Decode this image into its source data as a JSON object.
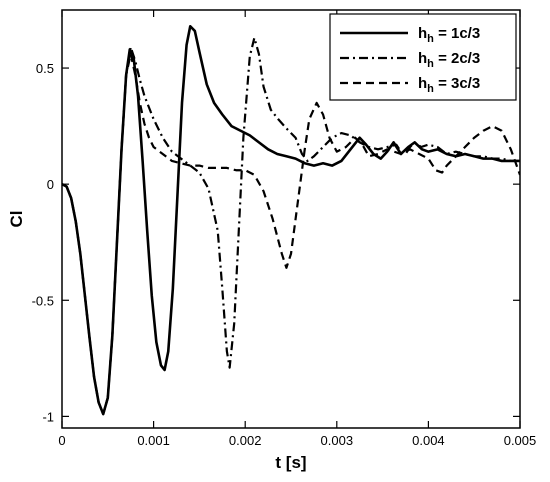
{
  "chart_data": {
    "type": "line",
    "xlabel": "t [s]",
    "ylabel": "Cl",
    "xlim": [
      0,
      0.005
    ],
    "ylim": [
      -1.05,
      0.75
    ],
    "grid": false,
    "legend_position": "top-right",
    "x_ticks": [
      0,
      0.001,
      0.002,
      0.003,
      0.004,
      0.005
    ],
    "x_tick_labels": [
      "0",
      "0.001",
      "0.002",
      "0.003",
      "0.004",
      "0.005"
    ],
    "y_ticks": [
      -1,
      -0.5,
      0,
      0.5
    ],
    "y_tick_labels": [
      "-1",
      "-0.5",
      "0",
      "0.5"
    ],
    "series": [
      {
        "name": "h_h = 1c/3",
        "legend_main": "h",
        "legend_sub": "h",
        "legend_rest": " = 1c/3",
        "style": "solid",
        "color": "#000000",
        "points": [
          [
            0,
            0
          ],
          [
            5e-05,
            -0.01
          ],
          [
            0.0001,
            -0.06
          ],
          [
            0.00015,
            -0.16
          ],
          [
            0.0002,
            -0.3
          ],
          [
            0.00025,
            -0.48
          ],
          [
            0.0003,
            -0.66
          ],
          [
            0.00035,
            -0.83
          ],
          [
            0.0004,
            -0.94
          ],
          [
            0.00045,
            -0.99
          ],
          [
            0.0005,
            -0.92
          ],
          [
            0.00055,
            -0.65
          ],
          [
            0.0006,
            -0.25
          ],
          [
            0.00065,
            0.15
          ],
          [
            0.0007,
            0.47
          ],
          [
            0.00074,
            0.58
          ],
          [
            0.00078,
            0.55
          ],
          [
            0.00083,
            0.38
          ],
          [
            0.00088,
            0.1
          ],
          [
            0.00093,
            -0.2
          ],
          [
            0.00098,
            -0.48
          ],
          [
            0.00103,
            -0.68
          ],
          [
            0.00108,
            -0.78
          ],
          [
            0.00112,
            -0.8
          ],
          [
            0.00116,
            -0.72
          ],
          [
            0.00121,
            -0.45
          ],
          [
            0.00126,
            -0.05
          ],
          [
            0.00131,
            0.35
          ],
          [
            0.00136,
            0.6
          ],
          [
            0.0014,
            0.68
          ],
          [
            0.00145,
            0.66
          ],
          [
            0.0015,
            0.57
          ],
          [
            0.00158,
            0.43
          ],
          [
            0.00166,
            0.35
          ],
          [
            0.00175,
            0.3
          ],
          [
            0.00185,
            0.25
          ],
          [
            0.00195,
            0.23
          ],
          [
            0.00205,
            0.21
          ],
          [
            0.00215,
            0.18
          ],
          [
            0.00225,
            0.15
          ],
          [
            0.00235,
            0.13
          ],
          [
            0.00245,
            0.12
          ],
          [
            0.00255,
            0.11
          ],
          [
            0.00265,
            0.09
          ],
          [
            0.00275,
            0.08
          ],
          [
            0.00285,
            0.09
          ],
          [
            0.00295,
            0.08
          ],
          [
            0.00305,
            0.1
          ],
          [
            0.00315,
            0.15
          ],
          [
            0.00325,
            0.2
          ],
          [
            0.00332,
            0.17
          ],
          [
            0.0034,
            0.13
          ],
          [
            0.00348,
            0.11
          ],
          [
            0.00355,
            0.14
          ],
          [
            0.00362,
            0.18
          ],
          [
            0.0037,
            0.13
          ],
          [
            0.00378,
            0.16
          ],
          [
            0.00385,
            0.18
          ],
          [
            0.00393,
            0.15
          ],
          [
            0.004,
            0.14
          ],
          [
            0.0041,
            0.15
          ],
          [
            0.0042,
            0.13
          ],
          [
            0.0043,
            0.12
          ],
          [
            0.0044,
            0.13
          ],
          [
            0.0045,
            0.12
          ],
          [
            0.0046,
            0.11
          ],
          [
            0.0047,
            0.11
          ],
          [
            0.0048,
            0.1
          ],
          [
            0.0049,
            0.1
          ],
          [
            0.005,
            0.1
          ]
        ]
      },
      {
        "name": "h_h = 2c/3",
        "legend_main": "h",
        "legend_sub": "h",
        "legend_rest": " = 2c/3",
        "style": "dashdot",
        "color": "#000000",
        "points": [
          [
            0,
            0
          ],
          [
            5e-05,
            -0.01
          ],
          [
            0.0001,
            -0.06
          ],
          [
            0.00015,
            -0.16
          ],
          [
            0.0002,
            -0.3
          ],
          [
            0.00025,
            -0.48
          ],
          [
            0.0003,
            -0.66
          ],
          [
            0.00035,
            -0.83
          ],
          [
            0.0004,
            -0.94
          ],
          [
            0.00045,
            -0.99
          ],
          [
            0.0005,
            -0.92
          ],
          [
            0.00055,
            -0.65
          ],
          [
            0.0006,
            -0.25
          ],
          [
            0.00065,
            0.15
          ],
          [
            0.0007,
            0.47
          ],
          [
            0.00075,
            0.59
          ],
          [
            0.0008,
            0.53
          ],
          [
            0.00085,
            0.45
          ],
          [
            0.0009,
            0.38
          ],
          [
            0.001,
            0.28
          ],
          [
            0.0011,
            0.2
          ],
          [
            0.0012,
            0.14
          ],
          [
            0.0013,
            0.11
          ],
          [
            0.0014,
            0.08
          ],
          [
            0.0015,
            0.05
          ],
          [
            0.0016,
            -0.02
          ],
          [
            0.0017,
            -0.2
          ],
          [
            0.00175,
            -0.45
          ],
          [
            0.0018,
            -0.72
          ],
          [
            0.00183,
            -0.79
          ],
          [
            0.00188,
            -0.6
          ],
          [
            0.00193,
            -0.2
          ],
          [
            0.00198,
            0.2
          ],
          [
            0.00205,
            0.55
          ],
          [
            0.0021,
            0.63
          ],
          [
            0.00215,
            0.56
          ],
          [
            0.0022,
            0.42
          ],
          [
            0.00228,
            0.32
          ],
          [
            0.00236,
            0.28
          ],
          [
            0.00245,
            0.24
          ],
          [
            0.00255,
            0.2
          ],
          [
            0.00262,
            0.13
          ],
          [
            0.00268,
            0.1
          ],
          [
            0.00275,
            0.12
          ],
          [
            0.00285,
            0.16
          ],
          [
            0.00295,
            0.2
          ],
          [
            0.00305,
            0.22
          ],
          [
            0.00315,
            0.21
          ],
          [
            0.00325,
            0.18
          ],
          [
            0.00335,
            0.16
          ],
          [
            0.00345,
            0.15
          ],
          [
            0.00355,
            0.16
          ],
          [
            0.00365,
            0.17
          ],
          [
            0.0037,
            0.14
          ],
          [
            0.00375,
            0.13
          ],
          [
            0.0038,
            0.16
          ],
          [
            0.00385,
            0.18
          ],
          [
            0.00392,
            0.16
          ],
          [
            0.004,
            0.17
          ],
          [
            0.0041,
            0.16
          ],
          [
            0.0042,
            0.13
          ],
          [
            0.0043,
            0.14
          ],
          [
            0.0044,
            0.13
          ],
          [
            0.0045,
            0.12
          ],
          [
            0.0046,
            0.12
          ],
          [
            0.0047,
            0.11
          ],
          [
            0.0048,
            0.11
          ],
          [
            0.0049,
            0.1
          ],
          [
            0.005,
            0.1
          ]
        ]
      },
      {
        "name": "h_h = 3c/3",
        "legend_main": "h",
        "legend_sub": "h",
        "legend_rest": " = 3c/3",
        "style": "dashed",
        "color": "#000000",
        "points": [
          [
            0,
            0
          ],
          [
            5e-05,
            -0.01
          ],
          [
            0.0001,
            -0.06
          ],
          [
            0.00015,
            -0.16
          ],
          [
            0.0002,
            -0.3
          ],
          [
            0.00025,
            -0.48
          ],
          [
            0.0003,
            -0.66
          ],
          [
            0.00035,
            -0.83
          ],
          [
            0.0004,
            -0.94
          ],
          [
            0.00045,
            -0.99
          ],
          [
            0.0005,
            -0.92
          ],
          [
            0.00055,
            -0.65
          ],
          [
            0.0006,
            -0.25
          ],
          [
            0.00065,
            0.15
          ],
          [
            0.0007,
            0.47
          ],
          [
            0.00075,
            0.56
          ],
          [
            0.0008,
            0.47
          ],
          [
            0.00085,
            0.35
          ],
          [
            0.0009,
            0.26
          ],
          [
            0.00095,
            0.2
          ],
          [
            0.001,
            0.16
          ],
          [
            0.0011,
            0.13
          ],
          [
            0.0012,
            0.1
          ],
          [
            0.0013,
            0.09
          ],
          [
            0.0014,
            0.08
          ],
          [
            0.0015,
            0.08
          ],
          [
            0.0016,
            0.07
          ],
          [
            0.0017,
            0.07
          ],
          [
            0.0018,
            0.07
          ],
          [
            0.0019,
            0.06
          ],
          [
            0.002,
            0.06
          ],
          [
            0.0021,
            0.04
          ],
          [
            0.0022,
            -0.03
          ],
          [
            0.0023,
            -0.15
          ],
          [
            0.0024,
            -0.3
          ],
          [
            0.00245,
            -0.36
          ],
          [
            0.0025,
            -0.3
          ],
          [
            0.00255,
            -0.15
          ],
          [
            0.0026,
            0.0
          ],
          [
            0.00265,
            0.15
          ],
          [
            0.0027,
            0.28
          ],
          [
            0.00278,
            0.35
          ],
          [
            0.00285,
            0.3
          ],
          [
            0.00292,
            0.2
          ],
          [
            0.003,
            0.14
          ],
          [
            0.0031,
            0.16
          ],
          [
            0.0032,
            0.2
          ],
          [
            0.00328,
            0.17
          ],
          [
            0.00335,
            0.12
          ],
          [
            0.00345,
            0.13
          ],
          [
            0.00355,
            0.15
          ],
          [
            0.0037,
            0.13
          ],
          [
            0.0038,
            0.15
          ],
          [
            0.0039,
            0.13
          ],
          [
            0.004,
            0.11
          ],
          [
            0.00408,
            0.06
          ],
          [
            0.00415,
            0.05
          ],
          [
            0.0042,
            0.08
          ],
          [
            0.0043,
            0.12
          ],
          [
            0.0044,
            0.16
          ],
          [
            0.0045,
            0.2
          ],
          [
            0.0046,
            0.23
          ],
          [
            0.0047,
            0.25
          ],
          [
            0.0048,
            0.23
          ],
          [
            0.0049,
            0.15
          ],
          [
            0.005,
            0.04
          ]
        ]
      }
    ]
  }
}
